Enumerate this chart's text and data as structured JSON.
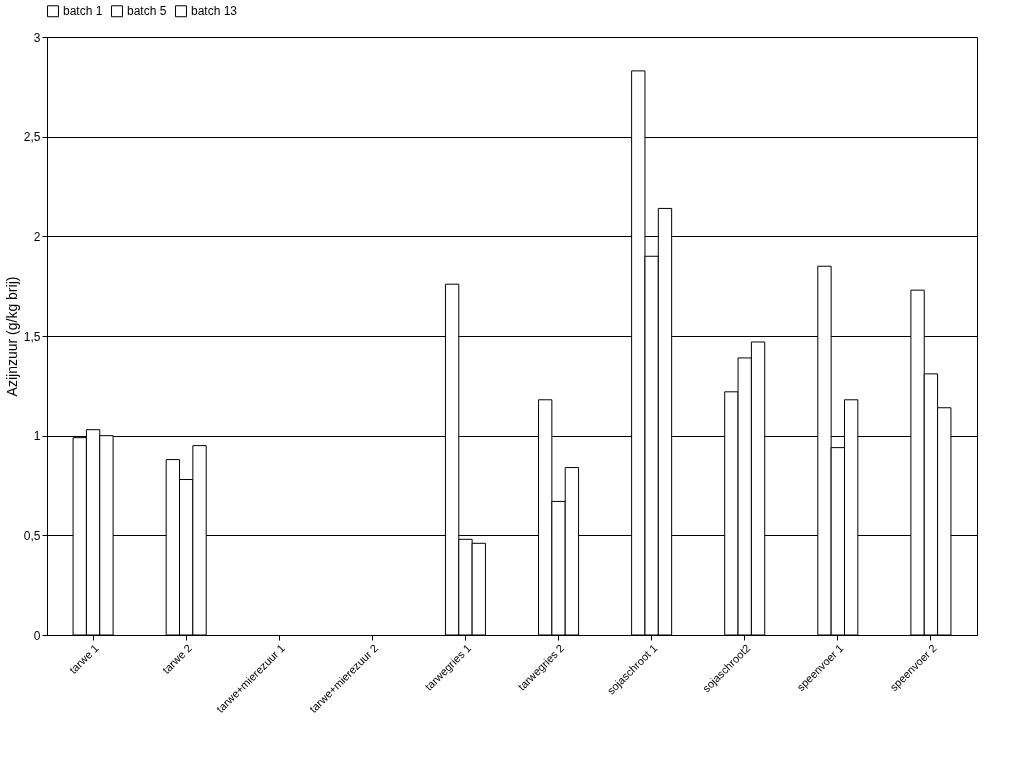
{
  "chart_data": {
    "type": "bar",
    "ylabel": "Azijnzuur (g/kg brij)",
    "categories": [
      "tarwe 1",
      "tarwe 2",
      "tarwe+mierezuur 1",
      "tarwe+mierezuur 2",
      "tarwegries 1",
      "tarwegries 2",
      "sojaschroot 1",
      "sojaschroot2",
      "speenvoer 1",
      "speenvoer 2"
    ],
    "series": [
      {
        "name": "batch 1",
        "color": "#ffffff",
        "values": [
          0.99,
          0.88,
          null,
          null,
          1.76,
          1.18,
          2.83,
          1.22,
          1.85,
          1.73
        ]
      },
      {
        "name": "batch 5",
        "color": "#ffffff",
        "values": [
          1.03,
          0.78,
          null,
          null,
          0.48,
          0.67,
          1.9,
          1.39,
          0.94,
          1.31
        ]
      },
      {
        "name": "batch 13",
        "color": "#ffffff",
        "values": [
          1.0,
          0.95,
          null,
          null,
          0.46,
          0.84,
          2.14,
          1.47,
          1.18,
          1.14
        ]
      }
    ],
    "ylim": [
      0,
      3
    ],
    "yticks": [
      0,
      {
        "value": 0.5,
        "label": "0,5"
      },
      1,
      {
        "value": 1.5,
        "label": "1,5"
      },
      2,
      {
        "value": 2.5,
        "label": "2,5"
      },
      3
    ],
    "grid": "y",
    "legend": "top"
  }
}
